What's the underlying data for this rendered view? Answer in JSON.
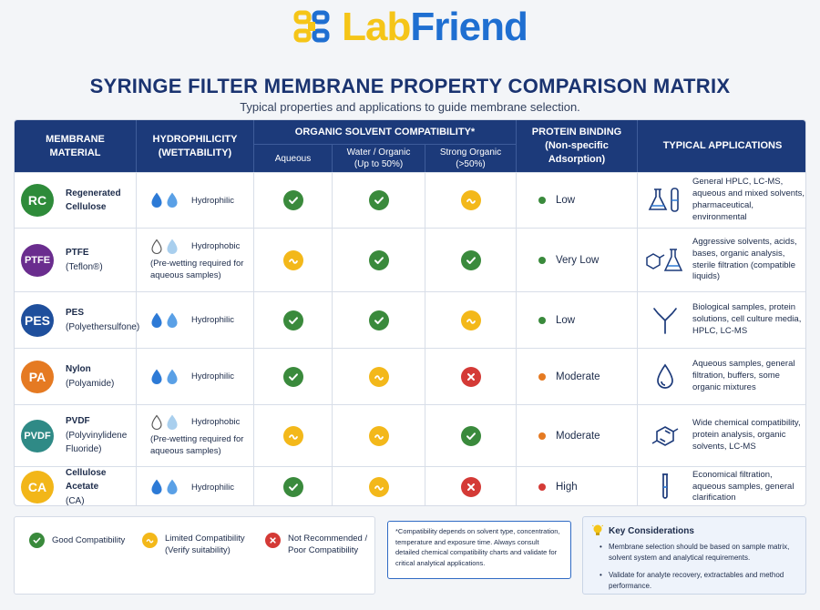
{
  "logo": {
    "part1": "Lab",
    "part2": "Friend"
  },
  "title": "SYRINGE FILTER MEMBRANE PROPERTY COMPARISON MATRIX",
  "subtitle": "Typical properties and applications to guide membrane selection.",
  "headers": {
    "material": "MEMBRANE MATERIAL",
    "hydrophilicity": "HYDROPHILICITY (WETTABILITY)",
    "solvent_group": "ORGANIC SOLVENT COMPATIBILITY*",
    "aqueous": "Aqueous",
    "water_organic": "Water / Organic (Up to 50%)",
    "strong_organic": "Strong Organic (>50%)",
    "protein_binding": "PROTEIN BINDING (Non-specific Adsorption)",
    "applications": "TYPICAL APPLICATIONS"
  },
  "rows": [
    {
      "abbr": "RC",
      "badge_color": "#2e8b3a",
      "name": "Regenerated Cellulose",
      "name_sub": "",
      "hydro": "Hydrophilic",
      "hydro_type": "filled",
      "hydro_note": "",
      "aqueous": "good",
      "water_organic": "good",
      "strong_organic": "limited",
      "binding": "Low",
      "binding_color": "#3a8a3c",
      "app_icon": "flask-tube-icon",
      "applications": "General HPLC, LC-MS, aqueous and mixed solvents, pharmaceutical, environmental"
    },
    {
      "abbr": "PTFE",
      "badge_color": "#6a2d8e",
      "name": "PTFE",
      "name_sub": "(Teflon®)",
      "hydro": "Hydrophobic",
      "hydro_type": "outline",
      "hydro_note": "(Pre-wetting required for aqueous samples)",
      "aqueous": "limited",
      "water_organic": "good",
      "strong_organic": "good",
      "binding": "Very Low",
      "binding_color": "#3a8a3c",
      "app_icon": "molecule-flask-icon",
      "applications": "Aggressive solvents, acids, bases, organic analysis, sterile filtration (compatible liquids)"
    },
    {
      "abbr": "PES",
      "badge_color": "#1f4f9c",
      "name": "PES",
      "name_sub": "(Polyethersulfone)",
      "hydro": "Hydrophilic",
      "hydro_type": "filled",
      "hydro_note": "",
      "aqueous": "good",
      "water_organic": "good",
      "strong_organic": "limited",
      "binding": "Low",
      "binding_color": "#3a8a3c",
      "app_icon": "antibody-icon",
      "applications": "Biological samples, protein solutions, cell culture media, HPLC, LC-MS"
    },
    {
      "abbr": "PA",
      "badge_color": "#e57a22",
      "name": "Nylon",
      "name_sub": "(Polyamide)",
      "hydro": "Hydrophilic",
      "hydro_type": "filled",
      "hydro_note": "",
      "aqueous": "good",
      "water_organic": "limited",
      "strong_organic": "bad",
      "binding": "Moderate",
      "binding_color": "#e57a22",
      "app_icon": "water-drop-icon",
      "applications": "Aqueous samples, general filtration, buffers, some organic mixtures"
    },
    {
      "abbr": "PVDF",
      "badge_color": "#2f8a86",
      "name": "PVDF",
      "name_sub": "(Polyvinylidene Fluoride)",
      "hydro": "Hydrophobic",
      "hydro_type": "outline",
      "hydro_note": "(Pre-wetting required for aqueous samples)",
      "aqueous": "limited",
      "water_organic": "limited",
      "strong_organic": "good",
      "binding": "Moderate",
      "binding_color": "#e57a22",
      "app_icon": "benzene-icon",
      "applications": "Wide chemical compatibility, protein analysis, organic solvents, LC-MS"
    },
    {
      "abbr": "CA",
      "badge_color": "#f2b619",
      "name": "Cellulose Acetate",
      "name_sub": "(CA)",
      "hydro": "Hydrophilic",
      "hydro_type": "filled",
      "hydro_note": "",
      "aqueous": "good",
      "water_organic": "limited",
      "strong_organic": "bad",
      "binding": "High",
      "binding_color": "#d43a36",
      "app_icon": "test-tube-icon",
      "applications": "Economical filtration, aqueous samples, general clarification"
    }
  ],
  "legend": {
    "good": "Good Compatibility",
    "limited_1": "Limited Compatibility",
    "limited_2": "(Verify suitability)",
    "bad_1": "Not Recommended /",
    "bad_2": "Poor Compatibility"
  },
  "footnote": "*Compatibility depends on solvent type, concentration, temperature and exposure time. Always consult detailed chemical compatibility charts and validate for critical analytical applications.",
  "key": {
    "title": "Key Considerations",
    "items": [
      "Membrane selection should be based on sample matrix, solvent system and analytical requirements.",
      "Validate for analyte recovery, extractables and method performance."
    ]
  }
}
